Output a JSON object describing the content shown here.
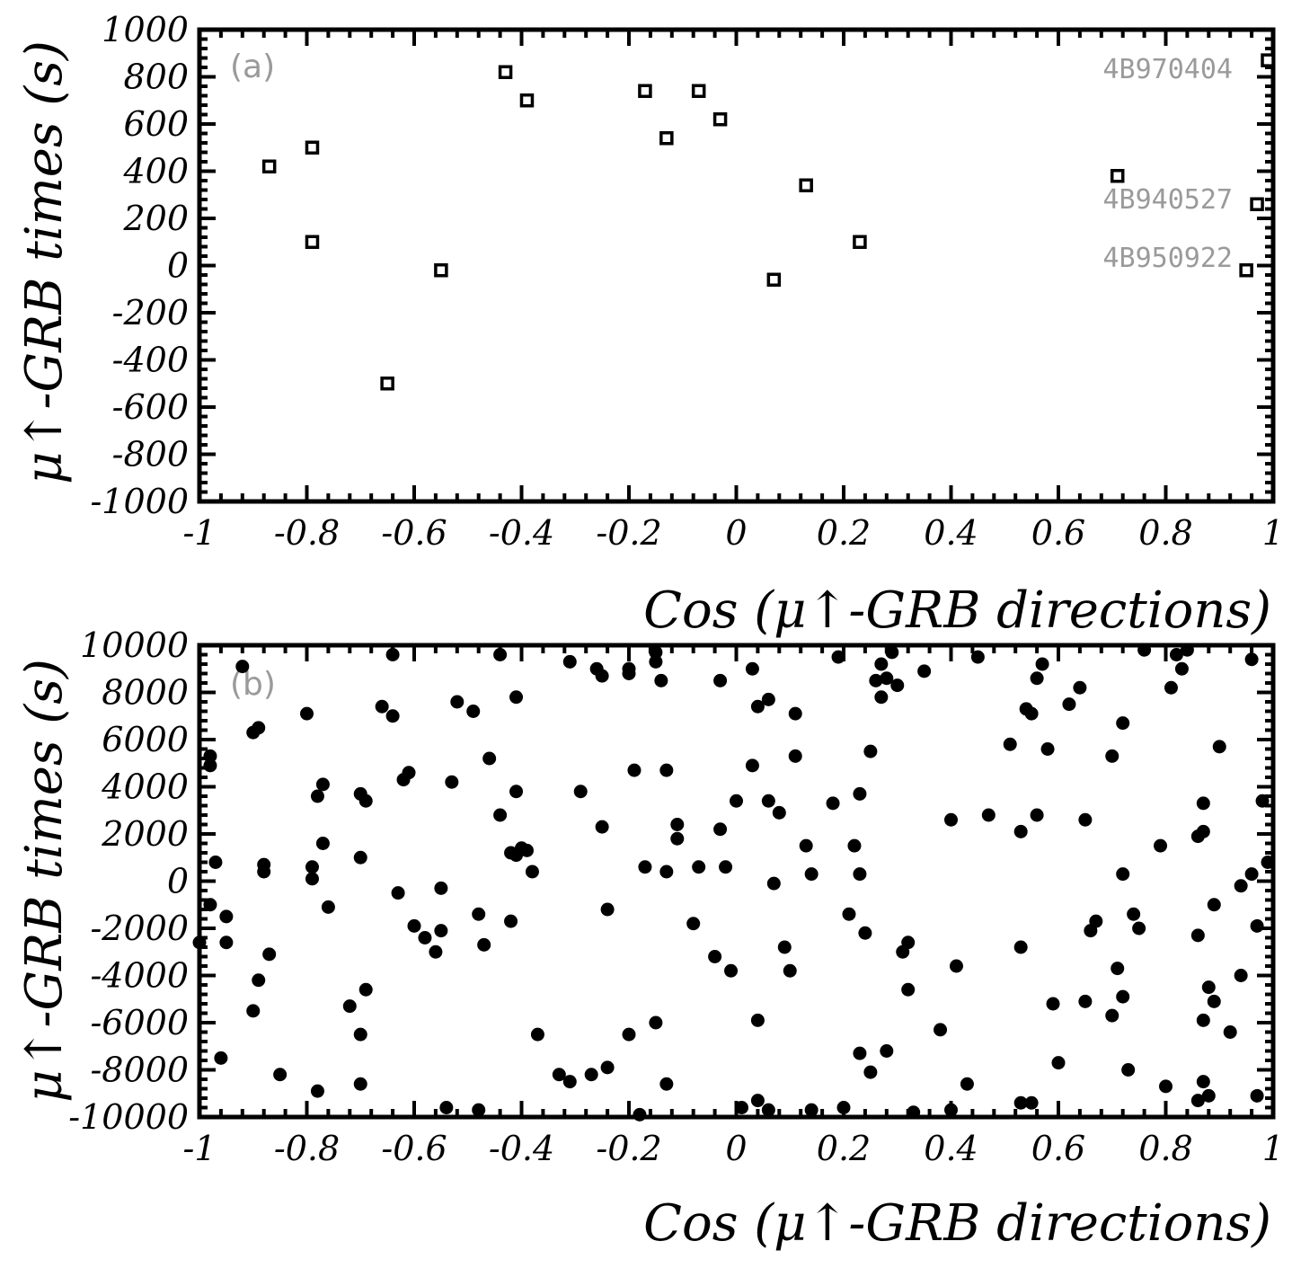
{
  "chart_data": [
    {
      "type": "scatter",
      "panel_label": "(a)",
      "xlabel": "Cos (μ↑-GRB directions)",
      "ylabel": "μ↑-GRB times (s)",
      "xlim": [
        -1,
        1
      ],
      "ylim": [
        -1000,
        1000
      ],
      "x_ticks": [
        -1,
        -0.8,
        -0.6,
        -0.4,
        -0.2,
        0,
        0.2,
        0.4,
        0.6,
        0.8,
        1
      ],
      "x_tick_labels": [
        "-1",
        "-0.8",
        "-0.6",
        "-0.4",
        "-0.2",
        "0",
        "0.2",
        "0.4",
        "0.6",
        "0.8",
        "1"
      ],
      "y_ticks": [
        -1000,
        -800,
        -600,
        -400,
        -200,
        0,
        200,
        400,
        600,
        800,
        1000
      ],
      "y_tick_labels": [
        "-1000",
        "-800",
        "-600",
        "-400",
        "-200",
        "0",
        "200",
        "400",
        "600",
        "800",
        "1000"
      ],
      "marker": "open-square",
      "points": [
        [
          -0.87,
          420
        ],
        [
          -0.79,
          500
        ],
        [
          -0.79,
          100
        ],
        [
          -0.65,
          -500
        ],
        [
          -0.55,
          -20
        ],
        [
          -0.43,
          820
        ],
        [
          -0.39,
          700
        ],
        [
          -0.17,
          740
        ],
        [
          -0.13,
          540
        ],
        [
          -0.07,
          740
        ],
        [
          -0.03,
          620
        ],
        [
          0.07,
          -60
        ],
        [
          0.13,
          340
        ],
        [
          0.23,
          100
        ],
        [
          0.71,
          380
        ],
        [
          0.95,
          -20
        ],
        [
          0.97,
          260
        ],
        [
          0.99,
          870
        ]
      ],
      "annotations": [
        {
          "text": "4B970404",
          "x": 0.99,
          "y": 870
        },
        {
          "text": "4B940527",
          "x": 0.97,
          "y": 260
        },
        {
          "text": "4B950922",
          "x": 0.95,
          "y": -20
        }
      ],
      "grid": false
    },
    {
      "type": "scatter",
      "panel_label": "(b)",
      "xlabel": "Cos (μ↑-GRB directions)",
      "ylabel": "μ↑-GRB times (s)",
      "xlim": [
        -1,
        1
      ],
      "ylim": [
        -10000,
        10000
      ],
      "x_ticks": [
        -1,
        -0.8,
        -0.6,
        -0.4,
        -0.2,
        0,
        0.2,
        0.4,
        0.6,
        0.8,
        1
      ],
      "x_tick_labels": [
        "-1",
        "-0.8",
        "-0.6",
        "-0.4",
        "-0.2",
        "0",
        "0.2",
        "0.4",
        "0.6",
        "0.8",
        "1"
      ],
      "y_ticks": [
        -10000,
        -8000,
        -6000,
        -4000,
        -2000,
        0,
        2000,
        4000,
        6000,
        8000,
        10000
      ],
      "y_tick_labels": [
        "-10000",
        "-8000",
        "-6000",
        "-4000",
        "-2000",
        "0",
        "2000",
        "4000",
        "6000",
        "8000",
        "10000"
      ],
      "marker": "filled-circle",
      "points": [
        [
          -0.98,
          5300
        ],
        [
          -0.98,
          4900
        ],
        [
          -0.97,
          800
        ],
        [
          -0.98,
          -1000
        ],
        [
          -1.0,
          -2600
        ],
        [
          -0.96,
          -7500
        ],
        [
          -0.95,
          -1500
        ],
        [
          -0.95,
          -2600
        ],
        [
          -0.92,
          9100
        ],
        [
          -0.9,
          6300
        ],
        [
          -0.89,
          6500
        ],
        [
          -0.88,
          700
        ],
        [
          -0.88,
          400
        ],
        [
          -0.9,
          -5500
        ],
        [
          -0.89,
          -4200
        ],
        [
          -0.87,
          -3100
        ],
        [
          -0.85,
          -8200
        ],
        [
          -0.8,
          7100
        ],
        [
          -0.78,
          3600
        ],
        [
          -0.77,
          4100
        ],
        [
          -0.77,
          1600
        ],
        [
          -0.79,
          600
        ],
        [
          -0.79,
          100
        ],
        [
          -0.76,
          -1100
        ],
        [
          -0.78,
          -8900
        ],
        [
          -0.7,
          3700
        ],
        [
          -0.69,
          3400
        ],
        [
          -0.7,
          1000
        ],
        [
          -0.69,
          -4600
        ],
        [
          -0.7,
          -6500
        ],
        [
          -0.7,
          -8600
        ],
        [
          -0.72,
          -5300
        ],
        [
          -0.66,
          7400
        ],
        [
          -0.64,
          7000
        ],
        [
          -0.64,
          9600
        ],
        [
          -0.63,
          -500
        ],
        [
          -0.62,
          4300
        ],
        [
          -0.61,
          4600
        ],
        [
          -0.6,
          -1900
        ],
        [
          -0.58,
          -2400
        ],
        [
          -0.56,
          -3000
        ],
        [
          -0.55,
          -300
        ],
        [
          -0.55,
          -2100
        ],
        [
          -0.53,
          4200
        ],
        [
          -0.52,
          7600
        ],
        [
          -0.49,
          7200
        ],
        [
          -0.48,
          -1400
        ],
        [
          -0.47,
          -2700
        ],
        [
          -0.46,
          5200
        ],
        [
          -0.44,
          9600
        ],
        [
          -0.44,
          2800
        ],
        [
          -0.42,
          1200
        ],
        [
          -0.42,
          -1700
        ],
        [
          -0.41,
          1100
        ],
        [
          -0.41,
          7800
        ],
        [
          -0.41,
          3800
        ],
        [
          -0.4,
          1400
        ],
        [
          -0.39,
          1300
        ],
        [
          -0.38,
          400
        ],
        [
          -0.37,
          -6500
        ],
        [
          -0.33,
          -8200
        ],
        [
          -0.31,
          -8500
        ],
        [
          -0.31,
          9300
        ],
        [
          -0.29,
          3800
        ],
        [
          -0.27,
          -8200
        ],
        [
          -0.26,
          9000
        ],
        [
          -0.25,
          8700
        ],
        [
          -0.25,
          2300
        ],
        [
          -0.24,
          -1200
        ],
        [
          -0.24,
          -7900
        ],
        [
          -0.2,
          9000
        ],
        [
          -0.2,
          8800
        ],
        [
          -0.2,
          -6500
        ],
        [
          -0.19,
          4700
        ],
        [
          -0.17,
          600
        ],
        [
          -0.15,
          9700
        ],
        [
          -0.15,
          9300
        ],
        [
          -0.15,
          -6000
        ],
        [
          -0.14,
          8500
        ],
        [
          -0.13,
          4700
        ],
        [
          -0.13,
          400
        ],
        [
          -0.13,
          -8600
        ],
        [
          -0.11,
          2400
        ],
        [
          -0.11,
          1800
        ],
        [
          -0.08,
          -1800
        ],
        [
          -0.07,
          600
        ],
        [
          -0.04,
          -3200
        ],
        [
          -0.03,
          8500
        ],
        [
          -0.03,
          2200
        ],
        [
          -0.02,
          600
        ],
        [
          0.0,
          3400
        ],
        [
          -0.01,
          -3800
        ],
        [
          0.03,
          9000
        ],
        [
          0.04,
          7400
        ],
        [
          0.06,
          7700
        ],
        [
          0.03,
          4900
        ],
        [
          0.06,
          3400
        ],
        [
          0.08,
          2900
        ],
        [
          0.07,
          -100
        ],
        [
          0.09,
          -2800
        ],
        [
          0.1,
          -3800
        ],
        [
          0.04,
          -5900
        ],
        [
          0.04,
          -9300
        ],
        [
          0.11,
          5300
        ],
        [
          0.11,
          7100
        ],
        [
          0.13,
          1500
        ],
        [
          0.14,
          300
        ],
        [
          0.18,
          3300
        ],
        [
          0.19,
          9500
        ],
        [
          0.21,
          -1400
        ],
        [
          0.22,
          1500
        ],
        [
          0.23,
          -7300
        ],
        [
          0.23,
          3700
        ],
        [
          0.23,
          300
        ],
        [
          0.24,
          -2200
        ],
        [
          0.25,
          5500
        ],
        [
          0.25,
          -8100
        ],
        [
          0.26,
          8500
        ],
        [
          0.27,
          9200
        ],
        [
          0.27,
          7800
        ],
        [
          0.28,
          8600
        ],
        [
          0.29,
          9700
        ],
        [
          0.3,
          8300
        ],
        [
          0.31,
          -3000
        ],
        [
          0.32,
          -2600
        ],
        [
          0.32,
          -4600
        ],
        [
          0.28,
          -7200
        ],
        [
          0.35,
          8900
        ],
        [
          0.38,
          -6300
        ],
        [
          0.4,
          2600
        ],
        [
          0.41,
          -3600
        ],
        [
          0.43,
          -8600
        ],
        [
          0.45,
          9500
        ],
        [
          0.47,
          2800
        ],
        [
          0.51,
          5800
        ],
        [
          0.53,
          2100
        ],
        [
          0.53,
          -2800
        ],
        [
          0.54,
          7300
        ],
        [
          0.55,
          7100
        ],
        [
          0.56,
          2800
        ],
        [
          0.56,
          8600
        ],
        [
          0.57,
          9200
        ],
        [
          0.58,
          5600
        ],
        [
          0.59,
          -5200
        ],
        [
          0.6,
          -7700
        ],
        [
          0.62,
          7500
        ],
        [
          0.64,
          8200
        ],
        [
          0.65,
          2600
        ],
        [
          0.65,
          -5100
        ],
        [
          0.66,
          -2100
        ],
        [
          0.67,
          -1700
        ],
        [
          0.7,
          5300
        ],
        [
          0.7,
          -5700
        ],
        [
          0.71,
          -3700
        ],
        [
          0.72,
          -4900
        ],
        [
          0.72,
          6700
        ],
        [
          0.72,
          300
        ],
        [
          0.73,
          -8000
        ],
        [
          0.74,
          -1400
        ],
        [
          0.75,
          -2000
        ],
        [
          0.76,
          9800
        ],
        [
          0.79,
          1500
        ],
        [
          0.8,
          -8700
        ],
        [
          0.81,
          8200
        ],
        [
          0.82,
          9600
        ],
        [
          0.83,
          9000
        ],
        [
          0.84,
          9800
        ],
        [
          0.86,
          1900
        ],
        [
          0.86,
          -2300
        ],
        [
          0.87,
          3300
        ],
        [
          0.87,
          2100
        ],
        [
          0.88,
          -4500
        ],
        [
          0.89,
          -5100
        ],
        [
          0.89,
          -1000
        ],
        [
          0.87,
          -5900
        ],
        [
          0.87,
          -8500
        ],
        [
          0.88,
          -9100
        ],
        [
          0.9,
          5700
        ],
        [
          0.92,
          -6400
        ],
        [
          0.94,
          -4000
        ],
        [
          0.94,
          -200
        ],
        [
          0.96,
          9400
        ],
        [
          0.96,
          300
        ],
        [
          0.97,
          -1900
        ],
        [
          0.98,
          3400
        ],
        [
          0.99,
          800
        ],
        [
          0.97,
          -9100
        ],
        [
          0.86,
          -9300
        ],
        [
          0.55,
          -9400
        ],
        [
          0.53,
          -9400
        ],
        [
          0.4,
          -9700
        ],
        [
          0.33,
          -9800
        ],
        [
          0.2,
          -9600
        ],
        [
          0.14,
          -9700
        ],
        [
          0.06,
          -9700
        ],
        [
          0.01,
          -9600
        ],
        [
          -0.18,
          -9900
        ],
        [
          -0.48,
          -9700
        ],
        [
          -0.54,
          -9600
        ]
      ],
      "grid": false
    }
  ]
}
